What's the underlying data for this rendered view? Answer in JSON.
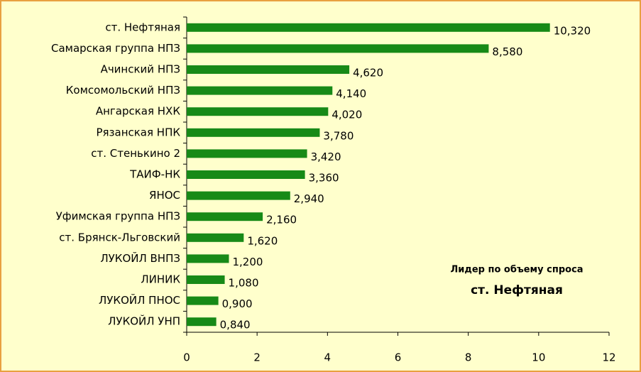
{
  "chart_data": {
    "type": "bar",
    "orientation": "horizontal",
    "categories": [
      "ст. Нефтяная",
      "Самарская группа НПЗ",
      "Ачинский НПЗ",
      "Комсомольский НПЗ",
      "Ангарская НХК",
      "Рязанская НПК",
      "ст. Стенькино 2",
      "ТАИФ-НК",
      "ЯНОС",
      "Уфимская группа НПЗ",
      "ст. Брянск-Льговский",
      "ЛУКОЙЛ ВНПЗ",
      "ЛИНИК",
      "ЛУКОЙЛ ПНОС",
      "ЛУКОЙЛ УНП"
    ],
    "values": [
      10.32,
      8.58,
      4.62,
      4.14,
      4.02,
      3.78,
      3.42,
      3.36,
      2.94,
      2.16,
      1.62,
      1.2,
      1.08,
      0.9,
      0.84
    ],
    "value_labels": [
      "10,320",
      "8,580",
      "4,620",
      "4,140",
      "4,020",
      "3,780",
      "3,420",
      "3,360",
      "2,940",
      "2,160",
      "1,620",
      "1,200",
      "1,080",
      "0,900",
      "0,840"
    ],
    "color": "#178a17",
    "xlim": [
      0,
      12
    ],
    "xticks": [
      0,
      2,
      4,
      6,
      8,
      10,
      12
    ],
    "annotations": [
      "Лидер по объему спроса",
      "ст. Нефтяная"
    ]
  }
}
